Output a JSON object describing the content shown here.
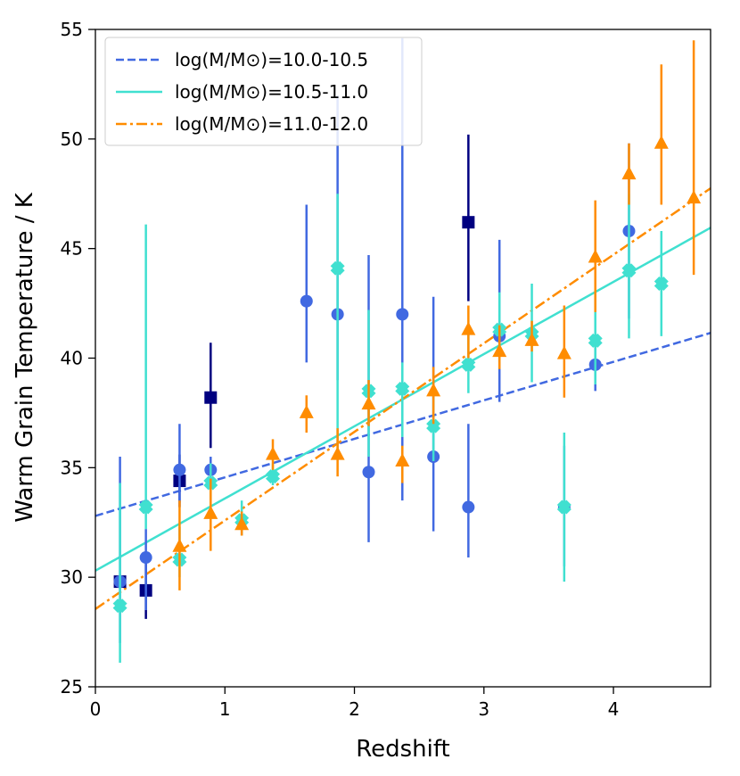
{
  "chart_data": {
    "type": "scatter",
    "xlabel": "Redshift",
    "ylabel": "Warm Grain Temperature / K",
    "xlim": [
      0,
      4.75
    ],
    "ylim": [
      25,
      55
    ],
    "xticks": [
      0,
      1,
      2,
      3,
      4
    ],
    "yticks": [
      25,
      30,
      35,
      40,
      45,
      50,
      55
    ],
    "legend_position": "top-left",
    "legend": [
      {
        "label": "log(M/M⊙)=10.0-10.5",
        "color": "#4169e1",
        "style": "dashed"
      },
      {
        "label": "log(M/M⊙)=10.5-11.0",
        "color": "#40e0d0",
        "style": "solid"
      },
      {
        "label": "log(M/M⊙)=11.0-12.0",
        "color": "#ff8c00",
        "style": "dashdot"
      }
    ],
    "fit_lines": [
      {
        "name": "log(M/M⊙)=10.0-10.5",
        "color": "#4169e1",
        "style": "dashed",
        "x": [
          0,
          4.75
        ],
        "y": [
          32.8,
          41.15
        ]
      },
      {
        "name": "log(M/M⊙)=10.5-11.0",
        "color": "#40e0d0",
        "style": "solid",
        "x": [
          0,
          4.75
        ],
        "y": [
          30.3,
          45.95
        ]
      },
      {
        "name": "log(M/M⊙)=11.0-12.0",
        "color": "#ff8c00",
        "style": "dashdot",
        "x": [
          0,
          4.75
        ],
        "y": [
          28.55,
          47.75
        ]
      }
    ],
    "series": [
      {
        "name": "navy squares",
        "marker": "square",
        "color": "#000080",
        "points": [
          {
            "x": 0.19,
            "y": 29.8,
            "lo": 29.5,
            "hi": 30.1
          },
          {
            "x": 0.39,
            "y": 29.4,
            "lo": 28.1,
            "hi": 31.0
          },
          {
            "x": 0.65,
            "y": 34.4,
            "lo": 33.2,
            "hi": 35.6
          },
          {
            "x": 0.89,
            "y": 38.2,
            "lo": 35.9,
            "hi": 40.7
          },
          {
            "x": 2.88,
            "y": 46.2,
            "lo": 42.6,
            "hi": 50.2
          }
        ]
      },
      {
        "name": "royal blue circles",
        "marker": "circle",
        "color": "#4169e1",
        "points": [
          {
            "x": 0.19,
            "y": 29.8,
            "lo": 27.0,
            "hi": 35.5
          },
          {
            "x": 0.39,
            "y": 30.9,
            "lo": 28.5,
            "hi": 32.2
          },
          {
            "x": 0.65,
            "y": 34.9,
            "lo": 33.4,
            "hi": 37.0
          },
          {
            "x": 0.89,
            "y": 34.9,
            "lo": 34.3,
            "hi": 35.5
          },
          {
            "x": 1.63,
            "y": 42.6,
            "lo": 39.8,
            "hi": 47.0
          },
          {
            "x": 1.87,
            "y": 42.0,
            "lo": 39.0,
            "hi": 52.0
          },
          {
            "x": 2.11,
            "y": 34.8,
            "lo": 31.6,
            "hi": 44.7
          },
          {
            "x": 2.37,
            "y": 42.0,
            "lo": 33.5,
            "hi": 54.6
          },
          {
            "x": 2.61,
            "y": 35.5,
            "lo": 32.1,
            "hi": 42.8
          },
          {
            "x": 2.88,
            "y": 33.2,
            "lo": 30.9,
            "hi": 37.0
          },
          {
            "x": 3.12,
            "y": 41.0,
            "lo": 38.0,
            "hi": 45.4
          },
          {
            "x": 3.62,
            "y": 33.2,
            "lo": 30.5,
            "hi": 36.0
          },
          {
            "x": 3.86,
            "y": 39.7,
            "lo": 38.5,
            "hi": 41.0
          },
          {
            "x": 4.12,
            "y": 45.8,
            "lo": 41.8,
            "hi": 49.8
          }
        ]
      },
      {
        "name": "turquoise crosses",
        "marker": "cross",
        "color": "#40e0d0",
        "points": [
          {
            "x": 0.19,
            "y": 28.7,
            "lo": 26.1,
            "hi": 34.3
          },
          {
            "x": 0.39,
            "y": 33.2,
            "lo": 32.2,
            "hi": 46.1
          },
          {
            "x": 0.65,
            "y": 30.8,
            "lo": 30.0,
            "hi": 32.3
          },
          {
            "x": 0.89,
            "y": 34.3,
            "lo": 33.5,
            "hi": 35.2
          },
          {
            "x": 1.13,
            "y": 32.6,
            "lo": 31.9,
            "hi": 33.5
          },
          {
            "x": 1.37,
            "y": 34.6,
            "lo": 34.2,
            "hi": 35.2
          },
          {
            "x": 1.87,
            "y": 44.1,
            "lo": 35.8,
            "hi": 47.5
          },
          {
            "x": 2.11,
            "y": 38.5,
            "lo": 35.5,
            "hi": 42.2
          },
          {
            "x": 2.37,
            "y": 38.6,
            "lo": 36.4,
            "hi": 39.8
          },
          {
            "x": 2.61,
            "y": 36.9,
            "lo": 35.3,
            "hi": 38.5
          },
          {
            "x": 2.88,
            "y": 39.7,
            "lo": 38.4,
            "hi": 41.4
          },
          {
            "x": 3.12,
            "y": 41.3,
            "lo": 39.8,
            "hi": 43.0
          },
          {
            "x": 3.37,
            "y": 41.1,
            "lo": 38.9,
            "hi": 43.4
          },
          {
            "x": 3.62,
            "y": 33.2,
            "lo": 29.8,
            "hi": 36.6
          },
          {
            "x": 3.86,
            "y": 40.8,
            "lo": 38.8,
            "hi": 42.9
          },
          {
            "x": 4.12,
            "y": 44.0,
            "lo": 40.9,
            "hi": 47.5
          },
          {
            "x": 4.37,
            "y": 43.4,
            "lo": 41.0,
            "hi": 45.8
          }
        ]
      },
      {
        "name": "orange triangles",
        "marker": "triangle",
        "color": "#ff8c00",
        "points": [
          {
            "x": 0.65,
            "y": 31.4,
            "lo": 29.4,
            "hi": 33.5
          },
          {
            "x": 0.89,
            "y": 32.9,
            "lo": 31.2,
            "hi": 34.5
          },
          {
            "x": 1.13,
            "y": 32.4,
            "lo": 31.9,
            "hi": 33.0
          },
          {
            "x": 1.37,
            "y": 35.6,
            "lo": 34.9,
            "hi": 36.3
          },
          {
            "x": 1.63,
            "y": 37.5,
            "lo": 36.6,
            "hi": 38.3
          },
          {
            "x": 1.87,
            "y": 35.6,
            "lo": 34.6,
            "hi": 36.8
          },
          {
            "x": 2.11,
            "y": 37.9,
            "lo": 36.9,
            "hi": 39.0
          },
          {
            "x": 2.37,
            "y": 35.3,
            "lo": 34.3,
            "hi": 36.0
          },
          {
            "x": 2.61,
            "y": 38.5,
            "lo": 37.0,
            "hi": 39.6
          },
          {
            "x": 2.88,
            "y": 41.3,
            "lo": 40.0,
            "hi": 42.4
          },
          {
            "x": 3.12,
            "y": 40.3,
            "lo": 39.5,
            "hi": 41.5
          },
          {
            "x": 3.37,
            "y": 40.8,
            "lo": 40.3,
            "hi": 41.7
          },
          {
            "x": 3.62,
            "y": 40.2,
            "lo": 38.2,
            "hi": 42.4
          },
          {
            "x": 3.86,
            "y": 44.6,
            "lo": 42.1,
            "hi": 47.2
          },
          {
            "x": 4.12,
            "y": 48.4,
            "lo": 47.0,
            "hi": 49.8
          },
          {
            "x": 4.37,
            "y": 49.8,
            "lo": 47.0,
            "hi": 53.4
          },
          {
            "x": 4.62,
            "y": 47.3,
            "lo": 43.8,
            "hi": 54.5
          }
        ]
      }
    ]
  }
}
